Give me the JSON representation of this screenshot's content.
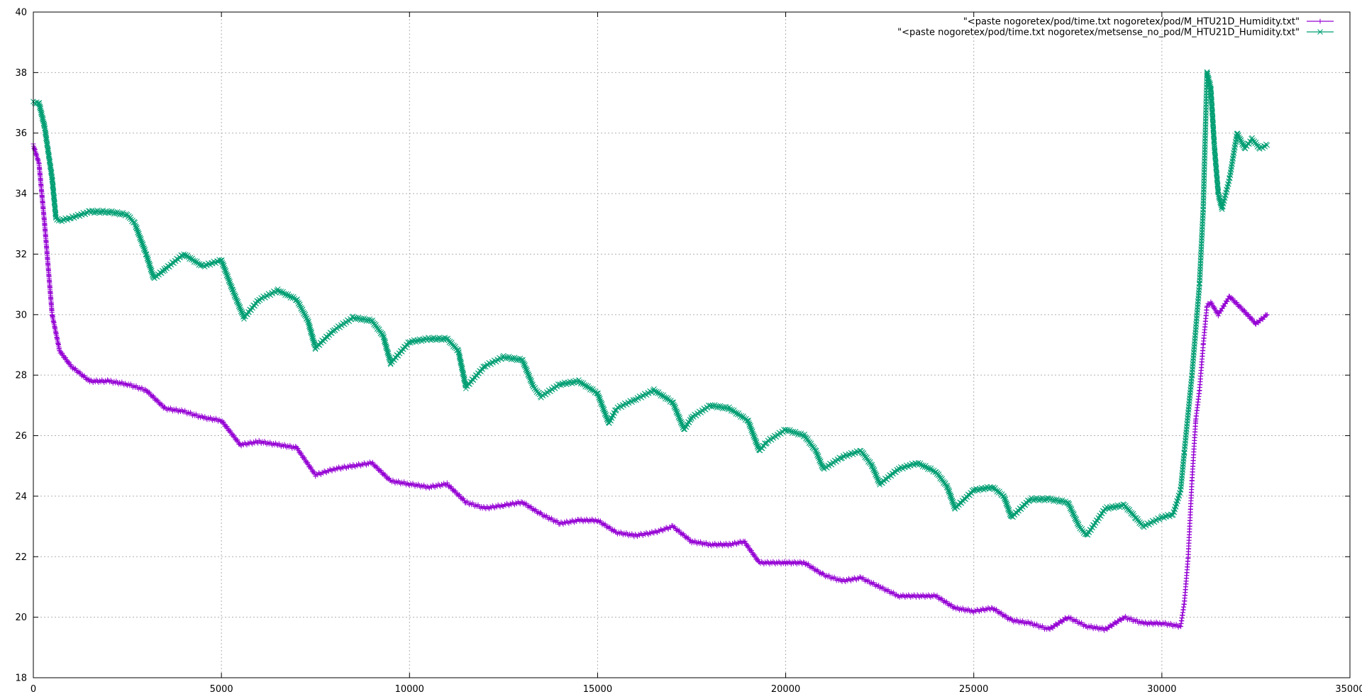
{
  "chart_data": {
    "type": "line",
    "title": "",
    "xlabel": "",
    "ylabel": "",
    "xlim": [
      0,
      35000
    ],
    "ylim": [
      18,
      40
    ],
    "xticks": [
      0,
      5000,
      10000,
      15000,
      20000,
      25000,
      30000,
      35000
    ],
    "yticks": [
      18,
      20,
      22,
      24,
      26,
      28,
      30,
      32,
      34,
      36,
      38,
      40
    ],
    "grid": true,
    "legend_position": "top-right",
    "series": [
      {
        "name": "\"<paste nogoretex/pod/time.txt nogoretex/pod/M_HTU21D_Humidity.txt\"",
        "color": "#9400d3",
        "marker": "plus",
        "x": [
          0,
          150,
          300,
          500,
          700,
          1000,
          1500,
          2000,
          2500,
          3000,
          3500,
          4000,
          4500,
          5000,
          5500,
          6000,
          6500,
          7000,
          7500,
          8000,
          8500,
          9000,
          9500,
          10000,
          10500,
          11000,
          11500,
          12000,
          12500,
          13000,
          13500,
          14000,
          14500,
          15000,
          15500,
          16000,
          16500,
          17000,
          17500,
          18000,
          18500,
          18900,
          19300,
          20000,
          20500,
          21000,
          21500,
          22000,
          22500,
          23000,
          23500,
          24000,
          24500,
          25000,
          25500,
          26000,
          26500,
          27000,
          27500,
          28000,
          28500,
          29000,
          29500,
          30000,
          30500,
          30600,
          30700,
          30800,
          30900,
          31000,
          31100,
          31200,
          31300,
          31500,
          31800,
          32200,
          32500,
          32800
        ],
        "y": [
          35.6,
          35.0,
          33.0,
          30.0,
          28.8,
          28.3,
          27.8,
          27.8,
          27.7,
          27.5,
          26.9,
          26.8,
          26.6,
          26.5,
          25.7,
          25.8,
          25.7,
          25.6,
          24.7,
          24.9,
          25.0,
          25.1,
          24.5,
          24.4,
          24.3,
          24.4,
          23.8,
          23.6,
          23.7,
          23.8,
          23.4,
          23.1,
          23.2,
          23.2,
          22.8,
          22.7,
          22.8,
          23.0,
          22.5,
          22.4,
          22.4,
          22.5,
          21.8,
          21.8,
          21.8,
          21.4,
          21.2,
          21.3,
          21.0,
          20.7,
          20.7,
          20.7,
          20.3,
          20.2,
          20.3,
          19.9,
          19.8,
          19.6,
          20.0,
          19.7,
          19.6,
          20.0,
          19.8,
          19.8,
          19.7,
          20.5,
          22.0,
          24.5,
          26.5,
          27.5,
          29.0,
          30.3,
          30.4,
          30.0,
          30.6,
          30.1,
          29.7,
          30.0
        ]
      },
      {
        "name": "\"<paste nogoretex/pod/time.txt nogoretex/metsense_no_pod/M_HTU21D_Humidity.txt\"",
        "color": "#009e73",
        "marker": "cross",
        "x": [
          0,
          150,
          300,
          500,
          600,
          700,
          1000,
          1500,
          2000,
          2500,
          2700,
          3000,
          3200,
          3500,
          4000,
          4500,
          5000,
          5300,
          5600,
          6000,
          6500,
          7000,
          7300,
          7500,
          8000,
          8500,
          9000,
          9300,
          9500,
          10000,
          10500,
          11000,
          11300,
          11500,
          12000,
          12500,
          13000,
          13300,
          13500,
          14000,
          14500,
          15000,
          15300,
          15500,
          16000,
          16500,
          17000,
          17300,
          17500,
          18000,
          18500,
          19000,
          19300,
          19500,
          20000,
          20500,
          20800,
          21000,
          21500,
          22000,
          22300,
          22500,
          23000,
          23500,
          24000,
          24300,
          24500,
          25000,
          25500,
          25800,
          26000,
          26500,
          27000,
          27500,
          27800,
          28000,
          28500,
          29000,
          29300,
          29500,
          30000,
          30300,
          30500,
          30600,
          30800,
          31000,
          31100,
          31200,
          31300,
          31400,
          31500,
          31600,
          31800,
          32000,
          32200,
          32400,
          32600,
          32800
        ],
        "y": [
          37.0,
          37.0,
          36.2,
          34.5,
          33.2,
          33.1,
          33.2,
          33.4,
          33.4,
          33.3,
          33.0,
          32.0,
          31.2,
          31.5,
          32.0,
          31.6,
          31.8,
          30.8,
          29.9,
          30.5,
          30.8,
          30.5,
          29.8,
          28.9,
          29.5,
          29.9,
          29.8,
          29.3,
          28.4,
          29.1,
          29.2,
          29.2,
          28.8,
          27.6,
          28.3,
          28.6,
          28.5,
          27.6,
          27.3,
          27.7,
          27.8,
          27.4,
          26.4,
          26.9,
          27.2,
          27.5,
          27.1,
          26.2,
          26.6,
          27.0,
          26.9,
          26.5,
          25.5,
          25.8,
          26.2,
          26.0,
          25.5,
          24.9,
          25.3,
          25.5,
          25.0,
          24.4,
          24.9,
          25.1,
          24.8,
          24.3,
          23.6,
          24.2,
          24.3,
          24.0,
          23.3,
          23.9,
          23.9,
          23.8,
          23.0,
          22.7,
          23.6,
          23.7,
          23.3,
          23.0,
          23.3,
          23.4,
          24.2,
          25.5,
          28.0,
          31.0,
          33.5,
          38.0,
          37.5,
          35.5,
          34.0,
          33.5,
          34.5,
          36.0,
          35.5,
          35.8,
          35.5,
          35.6
        ]
      }
    ]
  }
}
